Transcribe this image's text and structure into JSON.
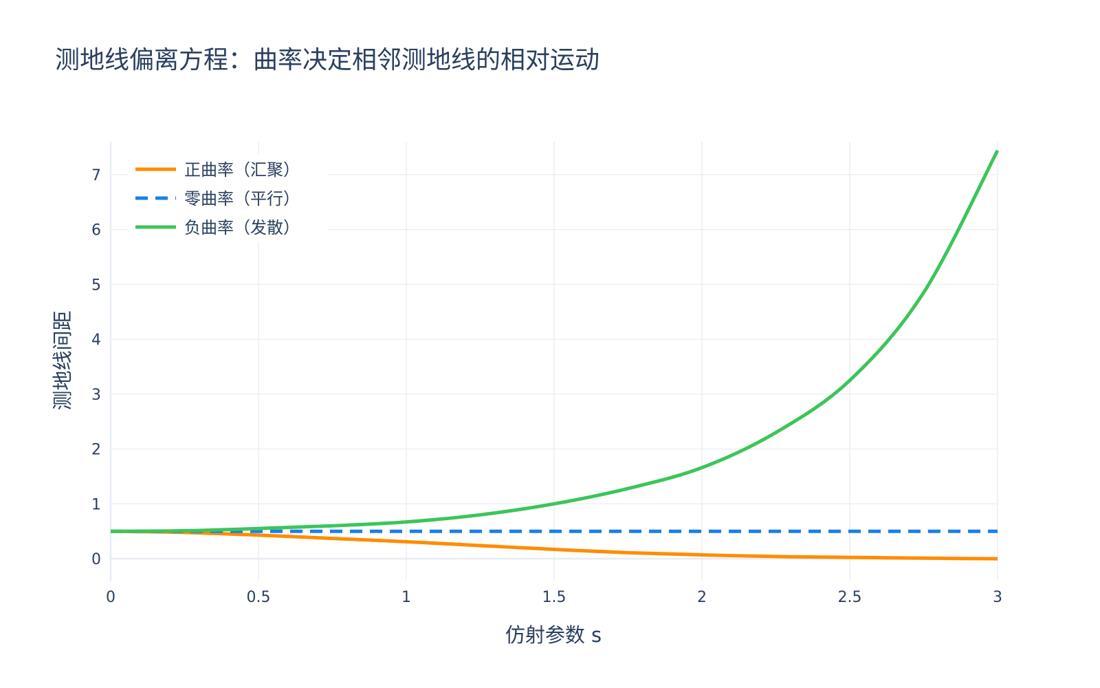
{
  "chart_data": {
    "type": "line",
    "title": "测地线偏离方程：曲率决定相邻测地线的相对运动",
    "xlabel": "仿射参数 s",
    "ylabel": "测地线间距",
    "xlim": [
      0,
      3
    ],
    "ylim": [
      -0.4,
      7.6
    ],
    "x_ticks": [
      0,
      0.5,
      1,
      1.5,
      2,
      2.5,
      3
    ],
    "x_tick_labels": [
      "0",
      "0.5",
      "1",
      "1.5",
      "2",
      "2.5",
      "3"
    ],
    "y_ticks": [
      0,
      1,
      2,
      3,
      4,
      5,
      6,
      7
    ],
    "y_tick_labels": [
      "0",
      "1",
      "2",
      "3",
      "4",
      "5",
      "6",
      "7"
    ],
    "grid": true,
    "legend_position": "top-left",
    "x": [
      0,
      0.25,
      0.5,
      0.75,
      1,
      1.25,
      1.5,
      1.75,
      2,
      2.25,
      2.5,
      2.75,
      3
    ],
    "series": [
      {
        "name": "正曲率（汇聚）",
        "color": "#ff8c00",
        "dash": "solid",
        "values": [
          0.5,
          0.48,
          0.43,
          0.37,
          0.31,
          0.24,
          0.17,
          0.11,
          0.07,
          0.04,
          0.025,
          0.01,
          0.0
        ]
      },
      {
        "name": "零曲率（平行）",
        "color": "#1a7fe8",
        "dash": "dash",
        "values": [
          0.5,
          0.5,
          0.5,
          0.5,
          0.5,
          0.5,
          0.5,
          0.5,
          0.5,
          0.5,
          0.5,
          0.5,
          0.5
        ]
      },
      {
        "name": "负曲率（发散）",
        "color": "#3cc55a",
        "dash": "solid",
        "values": [
          0.5,
          0.51,
          0.55,
          0.6,
          0.67,
          0.8,
          1.0,
          1.28,
          1.66,
          2.3,
          3.25,
          4.85,
          7.44
        ]
      }
    ]
  }
}
